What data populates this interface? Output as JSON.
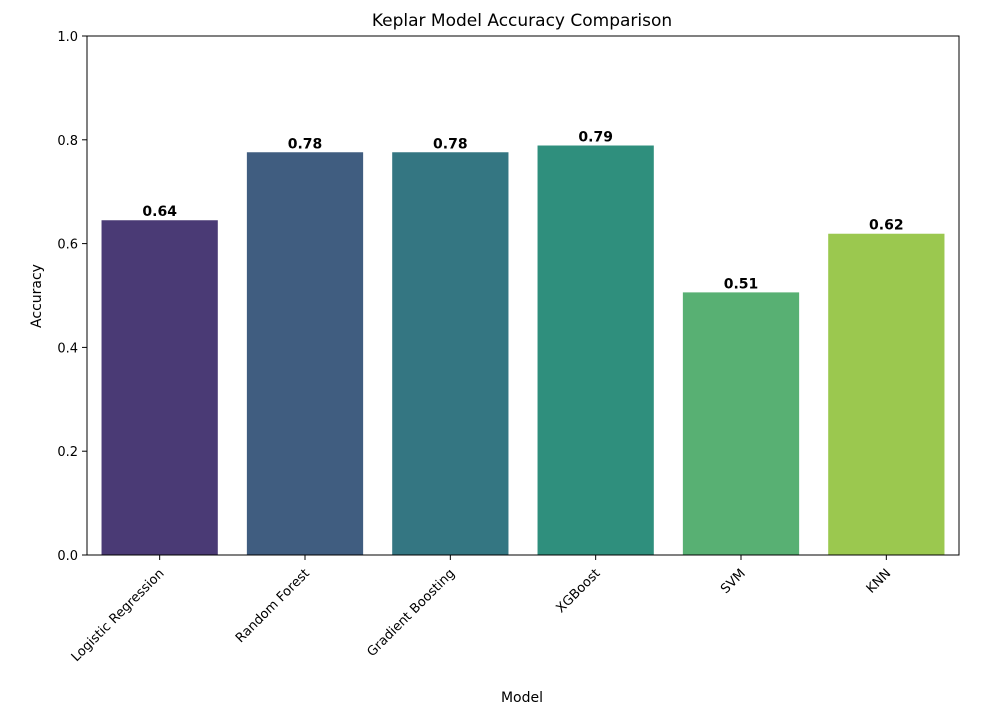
{
  "chart_data": {
    "type": "bar",
    "title": "Keplar Model Accuracy Comparison",
    "xlabel": "Model",
    "ylabel": "Accuracy",
    "ylim": [
      0,
      1.0
    ],
    "yticks": [
      "0.0",
      "0.2",
      "0.4",
      "0.6",
      "0.8",
      "1.0"
    ],
    "categories": [
      "Logistic Regression",
      "Random Forest",
      "Gradient Boosting",
      "XGBoost",
      "SVM",
      "KNN"
    ],
    "values": [
      0.645,
      0.776,
      0.776,
      0.789,
      0.506,
      0.619
    ],
    "value_labels": [
      "0.64",
      "0.78",
      "0.78",
      "0.79",
      "0.51",
      "0.62"
    ],
    "colors": [
      "#4a3a75",
      "#405d80",
      "#347682",
      "#2f8f7d",
      "#58b073",
      "#9bc84f"
    ],
    "grid": false,
    "legend": "none"
  }
}
